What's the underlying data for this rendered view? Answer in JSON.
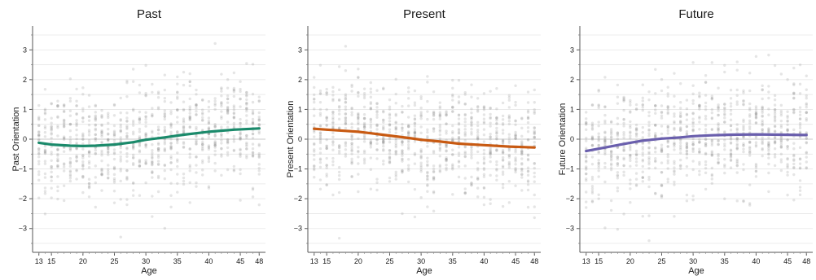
{
  "chart_data": [
    {
      "type": "scatter",
      "title": "Past",
      "xlabel": "Age",
      "ylabel": "Past Orientation",
      "xlim": [
        12,
        49
      ],
      "ylim": [
        -3.8,
        3.8
      ],
      "x_ticks": [
        13,
        15,
        20,
        25,
        30,
        35,
        40,
        45,
        48
      ],
      "y_ticks": [
        -3,
        -2,
        -1,
        0,
        1,
        2,
        3
      ],
      "grid": true,
      "colors": {
        "trend": "#1b8a6b",
        "points": "#888888"
      },
      "trend": {
        "x": [
          13,
          15,
          18,
          20,
          22,
          25,
          28,
          30,
          33,
          36,
          40,
          44,
          48
        ],
        "y": [
          -0.12,
          -0.18,
          -0.22,
          -0.23,
          -0.22,
          -0.18,
          -0.1,
          -0.02,
          0.06,
          0.15,
          0.25,
          0.32,
          0.36
        ]
      },
      "scatter": {
        "jitter_sd": 0.9
      }
    },
    {
      "type": "scatter",
      "title": "Present",
      "xlabel": "Age",
      "ylabel": "Present Orientation",
      "xlim": [
        12,
        49
      ],
      "ylim": [
        -3.8,
        3.8
      ],
      "x_ticks": [
        13,
        15,
        20,
        25,
        30,
        35,
        40,
        45,
        48
      ],
      "y_ticks": [
        -3,
        -2,
        -1,
        0,
        1,
        2,
        3
      ],
      "grid": true,
      "colors": {
        "trend": "#c85a12",
        "points": "#888888"
      },
      "trend": {
        "x": [
          13,
          15,
          18,
          20,
          22,
          25,
          28,
          30,
          33,
          36,
          40,
          44,
          48
        ],
        "y": [
          0.35,
          0.32,
          0.28,
          0.25,
          0.2,
          0.12,
          0.04,
          -0.02,
          -0.08,
          -0.15,
          -0.2,
          -0.25,
          -0.28
        ]
      },
      "scatter": {
        "jitter_sd": 0.9
      }
    },
    {
      "type": "scatter",
      "title": "Future",
      "xlabel": "Age",
      "ylabel": "Future Orientation",
      "xlim": [
        12,
        49
      ],
      "ylim": [
        -3.8,
        3.8
      ],
      "x_ticks": [
        13,
        15,
        20,
        25,
        30,
        35,
        40,
        45,
        48
      ],
      "y_ticks": [
        -3,
        -2,
        -1,
        0,
        1,
        2,
        3
      ],
      "grid": true,
      "colors": {
        "trend": "#6a5fad",
        "points": "#888888"
      },
      "trend": {
        "x": [
          13,
          15,
          18,
          20,
          22,
          25,
          28,
          30,
          33,
          36,
          40,
          44,
          48
        ],
        "y": [
          -0.4,
          -0.32,
          -0.2,
          -0.12,
          -0.05,
          0.02,
          0.06,
          0.1,
          0.13,
          0.15,
          0.16,
          0.15,
          0.14
        ]
      },
      "scatter": {
        "jitter_sd": 0.9
      }
    }
  ]
}
